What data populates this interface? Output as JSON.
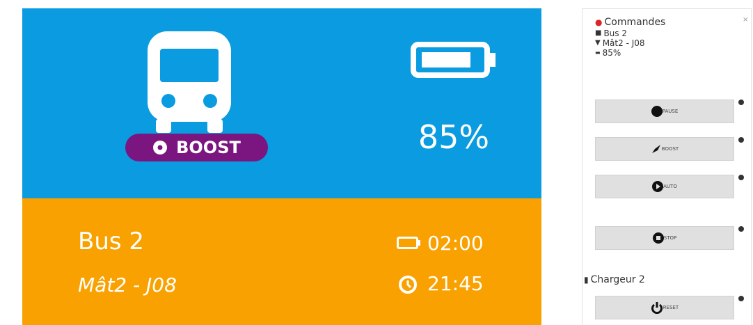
{
  "card": {
    "badge": "BOOST",
    "battery": "85%",
    "bus": "Bus 2",
    "location": "Mât2 - J08",
    "charge_time": "02:00",
    "clock": "21:45"
  },
  "panel": {
    "title": "Commandes",
    "close": "×",
    "bus": "Bus 2",
    "location": "Mât2 - J08",
    "battery": "85%",
    "buttons": [
      "PAUSE",
      "BOOST",
      "AUTO",
      "STOP"
    ],
    "charger": "Chargeur 2",
    "reset": "RESET"
  }
}
